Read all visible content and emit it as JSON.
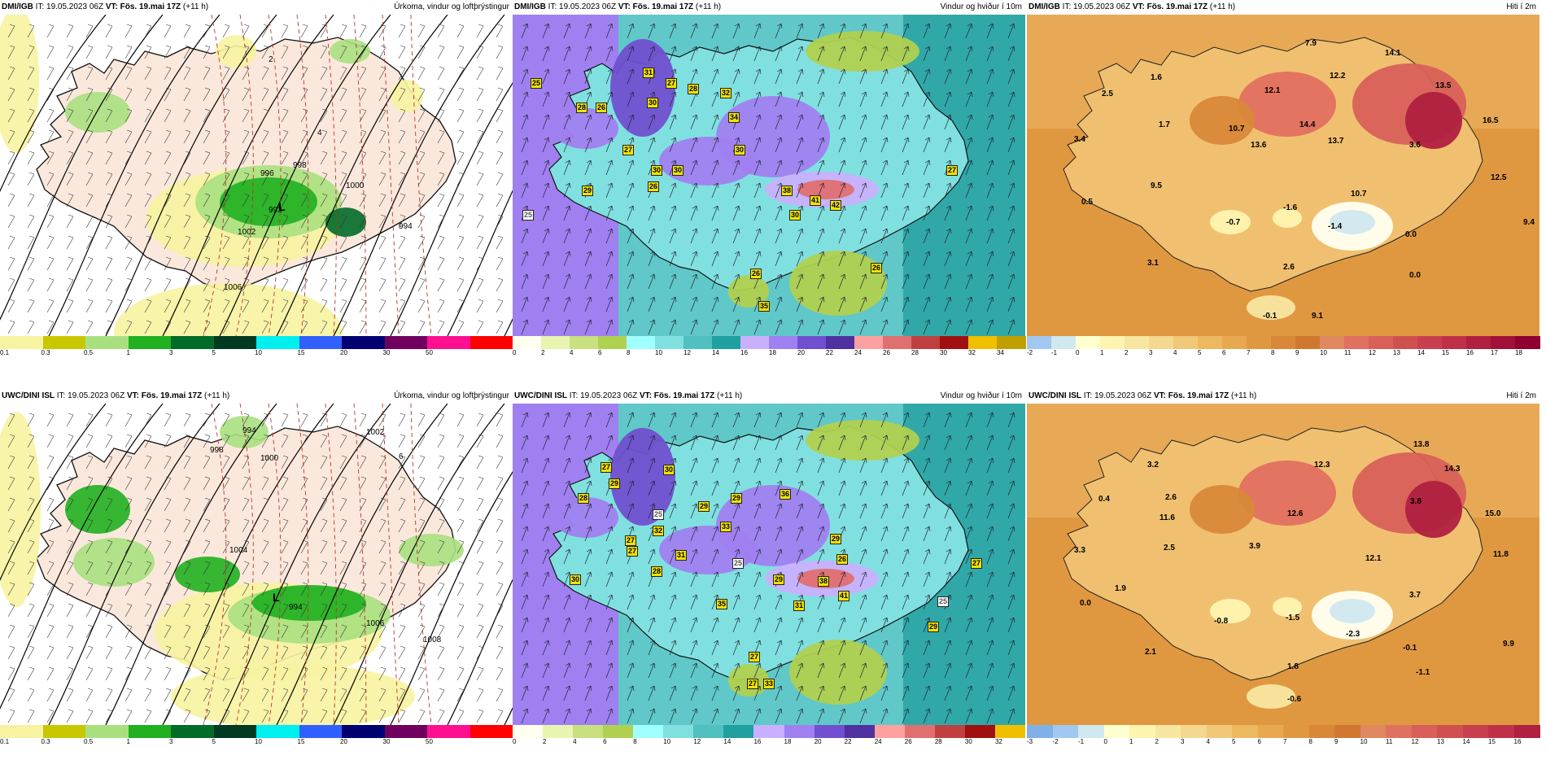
{
  "panels": [
    {
      "source": "DMI/IGB",
      "it": "IT: 19.05.2023 06Z",
      "vt_prefix": "VT:",
      "vt": "Fös. 19.mai 17Z",
      "lead": "(+11 h)",
      "title": "Úrkoma, vindur og loftþrýstingur",
      "colorbar": {
        "ticks": [
          "0.1",
          "0.3",
          "0.5",
          "1",
          "3",
          "5",
          "10",
          "15",
          "20",
          "30",
          "50"
        ],
        "colors": [
          "#f7f3a0",
          "#c8c800",
          "#a8e080",
          "#20b020",
          "#006c28",
          "#003a20",
          "#00f0f0",
          "#3060ff",
          "#000070",
          "#700060",
          "#ff1090",
          "#ff0000"
        ]
      },
      "labels": [
        {
          "t": "993"
        },
        {
          "t": "1002"
        },
        {
          "t": "996"
        },
        {
          "t": "998"
        },
        {
          "t": "1000"
        },
        {
          "t": "994"
        },
        {
          "t": "1006"
        },
        {
          "t": "L"
        },
        {
          "t": "4"
        },
        {
          "t": "2"
        }
      ]
    },
    {
      "source": "DMI/IGB",
      "it": "IT: 19.05.2023 06Z",
      "vt_prefix": "VT:",
      "vt": "Fös. 19.mai 17Z",
      "lead": "(+11 h)",
      "title": "Vindur og hviður í 10m",
      "colorbar": {
        "ticks": [
          "0",
          "2",
          "4",
          "6",
          "8",
          "10",
          "12",
          "14",
          "16",
          "18",
          "20",
          "22",
          "24",
          "26",
          "28",
          "30",
          "32",
          "34"
        ],
        "colors": [
          "#fffff0",
          "#e8f5b0",
          "#c8e080",
          "#b0d050",
          "#a0ffff",
          "#80e0e0",
          "#50c0c0",
          "#20a0a0",
          "#c8b0ff",
          "#a080f0",
          "#7050d0",
          "#5030a0",
          "#ffa0a0",
          "#e07070",
          "#c04040",
          "#a01010",
          "#f0c000",
          "#c0a000"
        ]
      },
      "labels": [
        {
          "t": "25"
        },
        {
          "t": "25"
        },
        {
          "t": "28"
        },
        {
          "t": "26"
        },
        {
          "t": "31"
        },
        {
          "t": "27"
        },
        {
          "t": "30"
        },
        {
          "t": "28"
        },
        {
          "t": "32"
        },
        {
          "t": "34"
        },
        {
          "t": "30"
        },
        {
          "t": "27"
        },
        {
          "t": "30"
        },
        {
          "t": "30"
        },
        {
          "t": "29"
        },
        {
          "t": "26"
        },
        {
          "t": "38"
        },
        {
          "t": "41"
        },
        {
          "t": "42"
        },
        {
          "t": "30"
        },
        {
          "t": "27"
        },
        {
          "t": "26"
        },
        {
          "t": "26"
        },
        {
          "t": "35"
        }
      ]
    },
    {
      "source": "DMI/IGB",
      "it": "IT: 19.05.2023 06Z",
      "vt_prefix": "VT:",
      "vt": "Fös. 19.mai 17Z",
      "lead": "(+11 h)",
      "title": "Hiti í 2m",
      "colorbar": {
        "ticks": [
          "-2",
          "-1",
          "0",
          "1",
          "2",
          "3",
          "4",
          "5",
          "6",
          "7",
          "8",
          "9",
          "10",
          "11",
          "12",
          "13",
          "14",
          "15",
          "16",
          "17",
          "18"
        ],
        "colors": [
          "#a0c8f0",
          "#d0e8f0",
          "#ffffd0",
          "#fff4b0",
          "#f8e6a0",
          "#f4d890",
          "#f0c878",
          "#ecb860",
          "#e8a850",
          "#e09840",
          "#d88838",
          "#d07830",
          "#e08860",
          "#e07060",
          "#d86058",
          "#d05050",
          "#c84050",
          "#c03048",
          "#b02040",
          "#a01038",
          "#900030"
        ]
      },
      "labels": [
        {
          "t": "7.9"
        },
        {
          "t": "14.1"
        },
        {
          "t": "1.6"
        },
        {
          "t": "12.2"
        },
        {
          "t": "2.5"
        },
        {
          "t": "12.1"
        },
        {
          "t": "13.5"
        },
        {
          "t": "1.7"
        },
        {
          "t": "10.7"
        },
        {
          "t": "14.4"
        },
        {
          "t": "16.5"
        },
        {
          "t": "3.4"
        },
        {
          "t": "13.6"
        },
        {
          "t": "13.7"
        },
        {
          "t": "3.6"
        },
        {
          "t": "9.5"
        },
        {
          "t": "10.7"
        },
        {
          "t": "12.5"
        },
        {
          "t": "0.5"
        },
        {
          "t": "-0.7"
        },
        {
          "t": "-1.6"
        },
        {
          "t": "-1.4"
        },
        {
          "t": "9.4"
        },
        {
          "t": "0.0"
        },
        {
          "t": "3.1"
        },
        {
          "t": "2.6"
        },
        {
          "t": "0.0"
        },
        {
          "t": "-0.1"
        },
        {
          "t": "9.1"
        }
      ]
    },
    {
      "source": "UWC/DINI ISL",
      "it": "IT: 19.05.2023 06Z",
      "vt_prefix": "VT:",
      "vt": "Fös. 19.mai 17Z",
      "lead": "(+11 h)",
      "title": "Úrkoma, vindur og loftþrýstingur",
      "colorbar": {
        "ticks": [
          "0.1",
          "0.3",
          "0.5",
          "1",
          "3",
          "5",
          "10",
          "15",
          "20",
          "30",
          "50"
        ],
        "colors": [
          "#f7f3a0",
          "#c8c800",
          "#a8e080",
          "#20b020",
          "#006c28",
          "#003a20",
          "#00f0f0",
          "#3060ff",
          "#000070",
          "#700060",
          "#ff1090",
          "#ff0000"
        ]
      },
      "labels": [
        {
          "t": "994"
        },
        {
          "t": "998"
        },
        {
          "t": "1000"
        },
        {
          "t": "1002"
        },
        {
          "t": "1004"
        },
        {
          "t": "1006"
        },
        {
          "t": "1008"
        },
        {
          "t": "994"
        },
        {
          "t": "L"
        },
        {
          "t": "6"
        }
      ]
    },
    {
      "source": "UWC/DINI ISL",
      "it": "IT: 19.05.2023 06Z",
      "vt_prefix": "VT:",
      "vt": "Fös. 19.mai 17Z",
      "lead": "(+11 h)",
      "title": "Vindur og hviður í 10m",
      "colorbar": {
        "ticks": [
          "0",
          "2",
          "4",
          "6",
          "8",
          "10",
          "12",
          "14",
          "16",
          "18",
          "20",
          "22",
          "24",
          "26",
          "28",
          "30",
          "32"
        ],
        "colors": [
          "#fffff0",
          "#e8f5b0",
          "#c8e080",
          "#b0d050",
          "#a0ffff",
          "#80e0e0",
          "#50c0c0",
          "#20a0a0",
          "#c8b0ff",
          "#a080f0",
          "#7050d0",
          "#5030a0",
          "#ffa0a0",
          "#e07070",
          "#c04040",
          "#a01010",
          "#f0c000"
        ]
      },
      "labels": [
        {
          "t": "27"
        },
        {
          "t": "28"
        },
        {
          "t": "29"
        },
        {
          "t": "30"
        },
        {
          "t": "25"
        },
        {
          "t": "27"
        },
        {
          "t": "36"
        },
        {
          "t": "29"
        },
        {
          "t": "29"
        },
        {
          "t": "32"
        },
        {
          "t": "33"
        },
        {
          "t": "29"
        },
        {
          "t": "26"
        },
        {
          "t": "27"
        },
        {
          "t": "25"
        },
        {
          "t": "31"
        },
        {
          "t": "29"
        },
        {
          "t": "38"
        },
        {
          "t": "41"
        },
        {
          "t": "31"
        },
        {
          "t": "35"
        },
        {
          "t": "27"
        },
        {
          "t": "28"
        },
        {
          "t": "29"
        },
        {
          "t": "25"
        },
        {
          "t": "27"
        },
        {
          "t": "27"
        },
        {
          "t": "33"
        },
        {
          "t": "30"
        }
      ]
    },
    {
      "source": "UWC/DINI ISL",
      "it": "IT: 19.05.2023 06Z",
      "vt_prefix": "VT:",
      "vt": "Fös. 19.mai 17Z",
      "lead": "(+11 h)",
      "title": "Hiti í 2m",
      "colorbar": {
        "ticks": [
          "-3",
          "-2",
          "-1",
          "0",
          "1",
          "2",
          "3",
          "4",
          "5",
          "6",
          "7",
          "8",
          "9",
          "10",
          "11",
          "12",
          "13",
          "14",
          "15",
          "16"
        ],
        "colors": [
          "#80b0e8",
          "#a0c8f0",
          "#d0e8f0",
          "#ffffd0",
          "#fff4b0",
          "#f8e6a0",
          "#f4d890",
          "#f0c878",
          "#ecb860",
          "#e8a850",
          "#e09840",
          "#d88838",
          "#d07830",
          "#e08860",
          "#e07060",
          "#d86058",
          "#d05050",
          "#c84050",
          "#c03048",
          "#b02040"
        ]
      },
      "labels": [
        {
          "t": "13.8"
        },
        {
          "t": "3.2"
        },
        {
          "t": "14.3"
        },
        {
          "t": "12.3"
        },
        {
          "t": "0.4"
        },
        {
          "t": "2.6"
        },
        {
          "t": "3.8"
        },
        {
          "t": "15.0"
        },
        {
          "t": "11.6"
        },
        {
          "t": "12.6"
        },
        {
          "t": "3.3"
        },
        {
          "t": "2.5"
        },
        {
          "t": "3.9"
        },
        {
          "t": "12.1"
        },
        {
          "t": "11.8"
        },
        {
          "t": "1.9"
        },
        {
          "t": "3.7"
        },
        {
          "t": "0.0"
        },
        {
          "t": "-0.8"
        },
        {
          "t": "-1.5"
        },
        {
          "t": "-2.3"
        },
        {
          "t": "9.9"
        },
        {
          "t": "-0.1"
        },
        {
          "t": "2.1"
        },
        {
          "t": "1.8"
        },
        {
          "t": "-1.1"
        },
        {
          "t": "-0.6"
        }
      ]
    }
  ]
}
